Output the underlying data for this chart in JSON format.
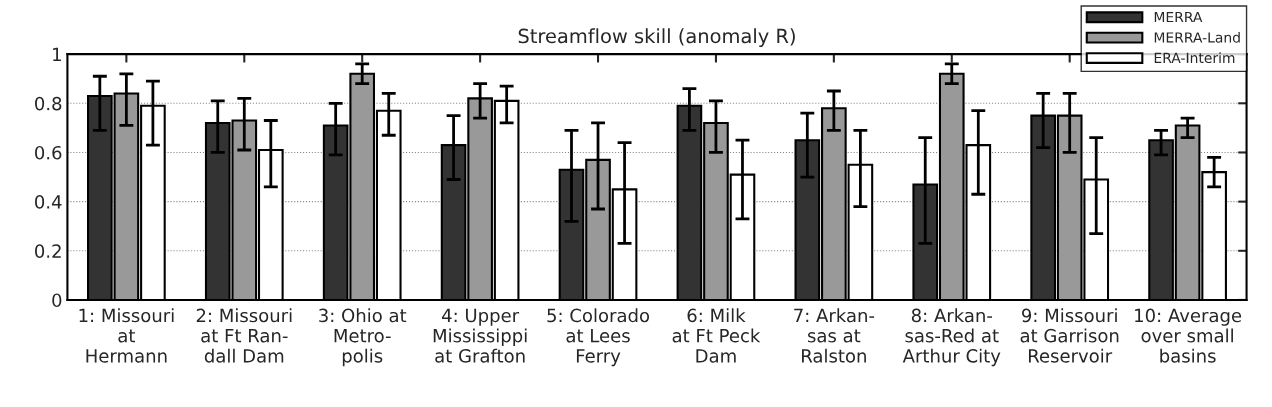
{
  "chart_data": {
    "type": "bar",
    "title": "Streamflow skill (anomaly R)",
    "categories": [
      "1: Missouri\nat\nHermann",
      "2: Missouri\nat Ft Ran-\ndall Dam",
      "3: Ohio at\nMetro-\npolis",
      "4: Upper\nMississippi\nat Grafton",
      "5: Colorado\nat Lees\nFerry",
      "6: Milk\nat Ft Peck\nDam",
      "7: Arkan-\nsas at\nRalston",
      "8: Arkan-\nsas-Red at\nArthur City",
      "9: Missouri\nat Garrison\nReservoir",
      "10: Average\nover small\nbasins"
    ],
    "series": [
      {
        "name": "MERRA",
        "color": "#333333",
        "values": [
          0.83,
          0.72,
          0.71,
          0.63,
          0.53,
          0.79,
          0.65,
          0.47,
          0.75,
          0.65
        ],
        "errors": [
          [
            0.69,
            0.91
          ],
          [
            0.6,
            0.81
          ],
          [
            0.59,
            0.8
          ],
          [
            0.49,
            0.75
          ],
          [
            0.32,
            0.69
          ],
          [
            0.69,
            0.86
          ],
          [
            0.5,
            0.76
          ],
          [
            0.23,
            0.66
          ],
          [
            0.62,
            0.84
          ],
          [
            0.59,
            0.69
          ]
        ]
      },
      {
        "name": "MERRA-Land",
        "color": "#999999",
        "values": [
          0.84,
          0.73,
          0.92,
          0.82,
          0.57,
          0.72,
          0.78,
          0.92,
          0.75,
          0.71
        ],
        "errors": [
          [
            0.71,
            0.92
          ],
          [
            0.61,
            0.82
          ],
          [
            0.88,
            0.96
          ],
          [
            0.74,
            0.88
          ],
          [
            0.37,
            0.72
          ],
          [
            0.6,
            0.81
          ],
          [
            0.69,
            0.85
          ],
          [
            0.88,
            0.96
          ],
          [
            0.6,
            0.84
          ],
          [
            0.66,
            0.74
          ]
        ]
      },
      {
        "name": "ERA-Interim",
        "color": "#ffffff",
        "values": [
          0.79,
          0.61,
          0.77,
          0.81,
          0.45,
          0.51,
          0.55,
          0.63,
          0.49,
          0.52
        ],
        "errors": [
          [
            0.63,
            0.89
          ],
          [
            0.46,
            0.73
          ],
          [
            0.67,
            0.84
          ],
          [
            0.72,
            0.87
          ],
          [
            0.23,
            0.64
          ],
          [
            0.33,
            0.65
          ],
          [
            0.38,
            0.69
          ],
          [
            0.43,
            0.77
          ],
          [
            0.27,
            0.66
          ],
          [
            0.46,
            0.58
          ]
        ]
      }
    ],
    "ylim": [
      0,
      1
    ],
    "yticks": [
      0,
      0.2,
      0.4,
      0.6,
      0.8,
      1
    ],
    "grid": "y",
    "legend": "top right"
  }
}
